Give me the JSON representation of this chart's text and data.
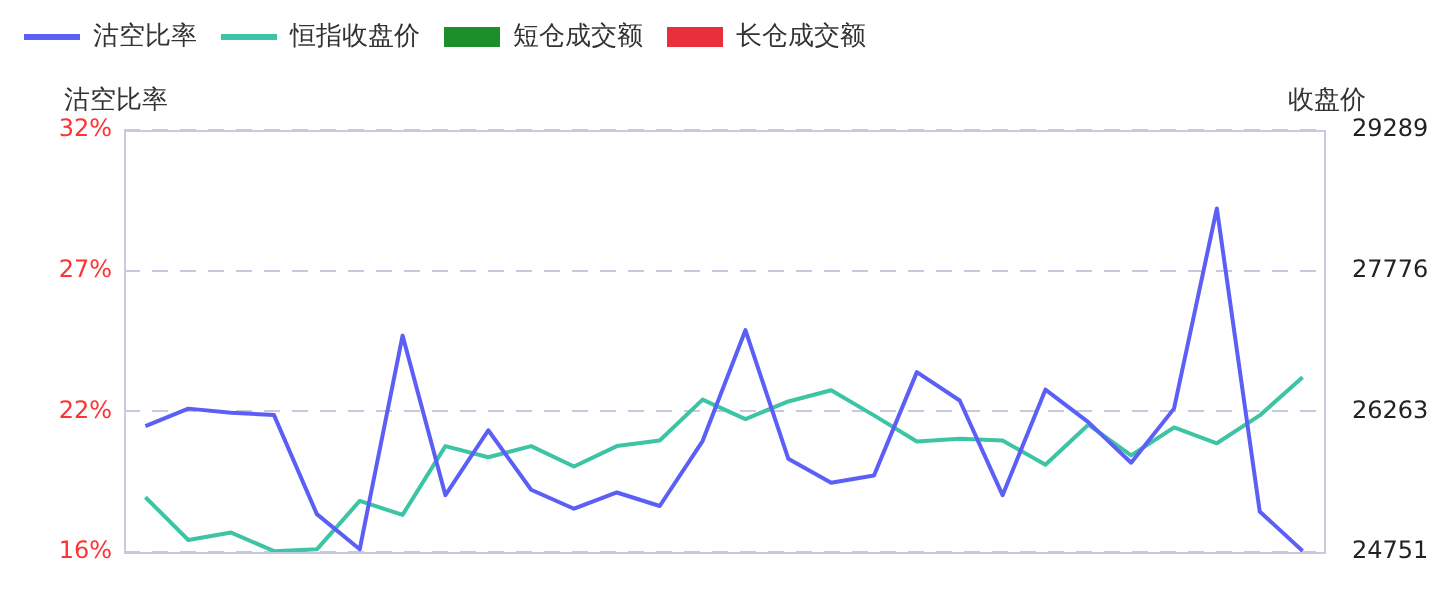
{
  "chart_data": {
    "type": "line",
    "ylabel": "沽空比率",
    "y2label": "收盘价",
    "categories": [
      null,
      null,
      null,
      null,
      null,
      null,
      null,
      null,
      null,
      null,
      null,
      null,
      null,
      null,
      null,
      null,
      null,
      null,
      null,
      null,
      null,
      null,
      null,
      null,
      null,
      null,
      null,
      null
    ],
    "series": [
      {
        "name": "沽空比率",
        "color": "#5b5ff5",
        "values": [
          21.05,
          21.7,
          21.55,
          21.46,
          17.8,
          16.5,
          24.4,
          18.5,
          20.9,
          18.7,
          18.0,
          18.6,
          18.1,
          20.5,
          24.6,
          19.85,
          18.96,
          19.23,
          23.05,
          22.0,
          18.5,
          22.4,
          21.2,
          19.7,
          21.7,
          29.1,
          17.9,
          16.44
        ]
      },
      {
        "name": "恒指收盘价",
        "color": "#3cc4a4",
        "axis": "y2",
        "values": [
          25340,
          24880,
          24960,
          24760,
          24780,
          25300,
          25150,
          25890,
          25770,
          25890,
          25670,
          25890,
          25950,
          26390,
          26180,
          26370,
          26490,
          26220,
          25940,
          25970,
          25950,
          25690,
          26120,
          25790,
          26090,
          25920,
          26220,
          26630
        ]
      },
      {
        "name": "短仓成交额",
        "color": "#1a8f2a",
        "type": "bar",
        "values": [
          null,
          null,
          null,
          null,
          null,
          null,
          null,
          null,
          null,
          null,
          null,
          null,
          null,
          null,
          null,
          null,
          null,
          null,
          null,
          null,
          null,
          null,
          null,
          null,
          null,
          null,
          null,
          null
        ]
      },
      {
        "name": "长仓成交额",
        "color": "#e8303a",
        "type": "bar",
        "values": [
          null,
          null,
          null,
          null,
          null,
          null,
          null,
          null,
          null,
          null,
          null,
          null,
          null,
          null,
          null,
          null,
          null,
          null,
          null,
          null,
          null,
          null,
          null,
          null,
          null,
          null,
          null,
          null
        ]
      }
    ],
    "ylim": [
      16.4,
      32
    ],
    "yticks": [
      {
        "value": 16.4,
        "label": "16%"
      },
      {
        "value": 21.6,
        "label": "22%"
      },
      {
        "value": 26.8,
        "label": "27%"
      },
      {
        "value": 32,
        "label": "32%"
      }
    ],
    "y2lim": [
      24751,
      29289
    ],
    "y2ticks": [
      24751,
      26263,
      27776,
      29289
    ],
    "grid": "y",
    "legend": "top left",
    "marker": "none",
    "line_style": "solid",
    "tick_labels": "y"
  }
}
